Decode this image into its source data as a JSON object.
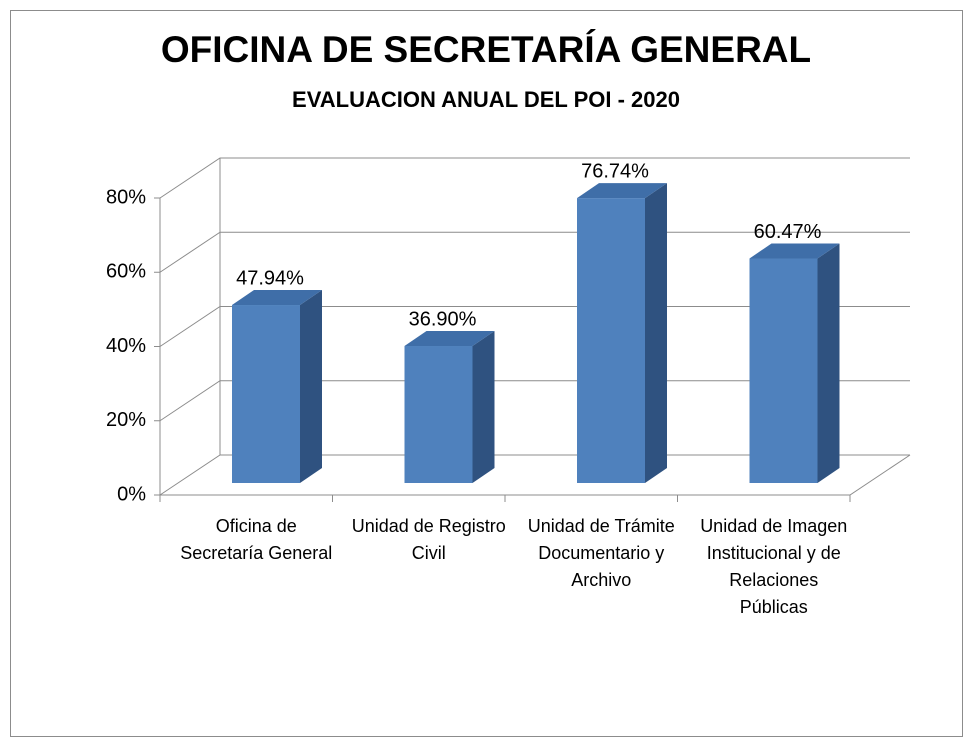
{
  "chart_data": {
    "type": "bar3d",
    "title": "OFICINA DE SECRETARÍA GENERAL",
    "subtitle": "EVALUACION ANUAL DEL POI - 2020",
    "categories": [
      "Oficina de Secretaría General",
      "Unidad de Registro Civil",
      "Unidad de Trámite Documentario y Archivo",
      "Unidad de Imagen Institucional y de Relaciones Públicas"
    ],
    "values": [
      47.94,
      36.9,
      76.74,
      60.47
    ],
    "value_labels": [
      "47.94%",
      "36.90%",
      "76.74%",
      "60.47%"
    ],
    "color": "#4f81bd",
    "ylim": [
      0,
      80
    ],
    "yticks": [
      {
        "value": 0,
        "label": "0%"
      },
      {
        "value": 20,
        "label": "20%"
      },
      {
        "value": 40,
        "label": "40%"
      },
      {
        "value": 60,
        "label": "60%"
      },
      {
        "value": 80,
        "label": "80%"
      }
    ],
    "grid": true
  }
}
